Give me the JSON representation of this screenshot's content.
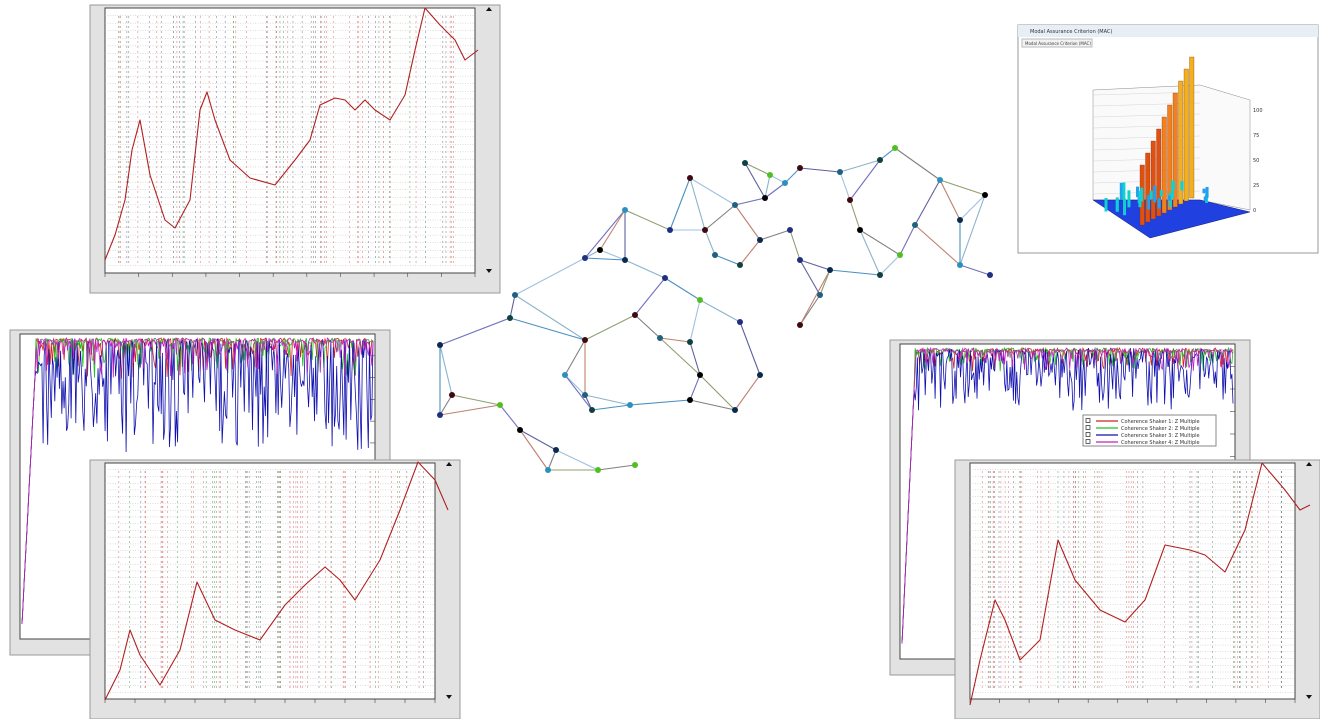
{
  "mac_window": {
    "title": "Modal Assurance Criterion (MAC)",
    "menu": "Modal Assurance Criterion (MAC)",
    "zticks": [
      "100",
      "75",
      "50",
      "25",
      "0"
    ]
  },
  "coherence_legend": [
    "Coherence Shaker 1: Z Multiple",
    "Coherence Shaker 2: Z Multiple",
    "Coherence Shaker 3: Z Multiple",
    "Coherence Shaker 4: Z Multiple"
  ]
}
